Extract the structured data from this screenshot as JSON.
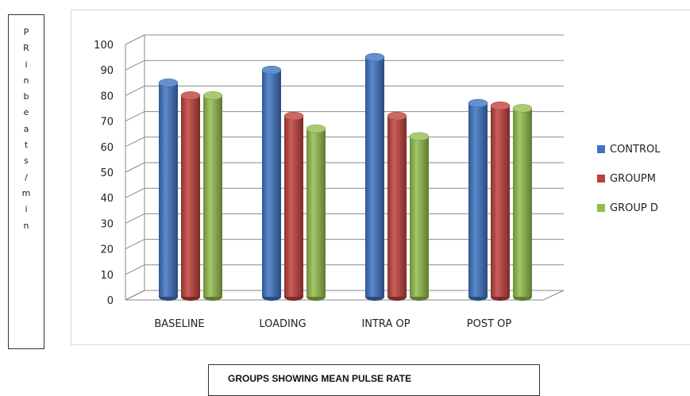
{
  "chart_data": {
    "type": "bar",
    "title": "GROUPS SHOWING MEAN PULSE RATE",
    "ylabel": "PR in beats/min",
    "ylabel_chars": [
      "P",
      "R",
      "i",
      "n",
      "b",
      "e",
      "a",
      "t",
      "s",
      "/",
      "m",
      "i",
      "n"
    ],
    "ylim": [
      0,
      100
    ],
    "yticks": [
      0,
      10,
      20,
      30,
      40,
      50,
      60,
      70,
      80,
      90,
      100
    ],
    "grid": true,
    "legend_position": "right",
    "categories": [
      "BASELINE",
      "LOADING",
      "INTRA OP",
      "POST OP"
    ],
    "series": [
      {
        "name": "CONTROL",
        "color": "#3f74c4",
        "values": [
          85,
          90,
          95,
          77
        ]
      },
      {
        "name": "GROUPM",
        "color": "#c0413d",
        "values": [
          80,
          72,
          72,
          76
        ]
      },
      {
        "name": "GROUP D",
        "color": "#93bd4d",
        "values": [
          80,
          67,
          64,
          75
        ]
      }
    ]
  }
}
